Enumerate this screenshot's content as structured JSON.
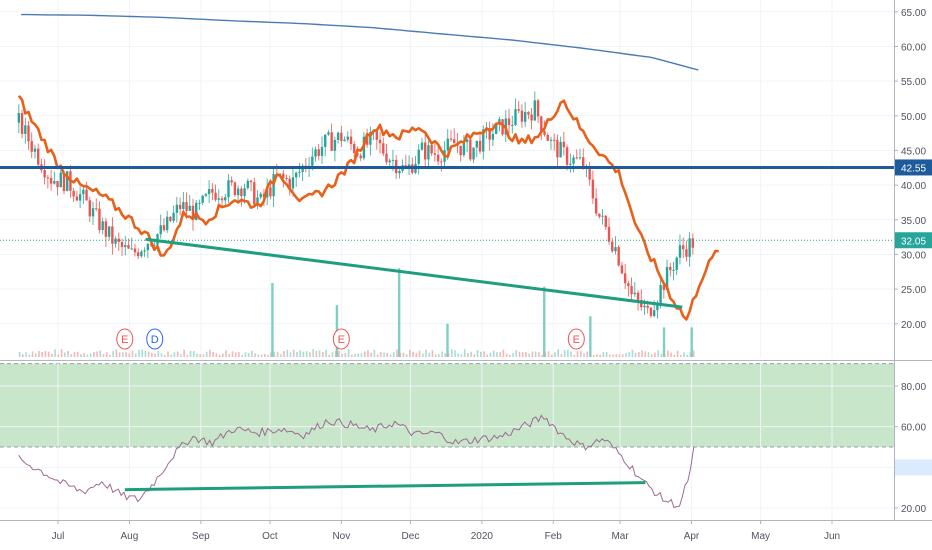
{
  "chart_data": [
    {
      "type": "line",
      "panel": "price",
      "ylim": [
        15,
        67
      ],
      "yticks": [
        "65.00",
        "60.00",
        "55.00",
        "50.00",
        "45.00",
        "40.00",
        "35.00",
        "30.00",
        "25.00",
        "20.00"
      ],
      "ytick_values": [
        65,
        60,
        55,
        50,
        45,
        40,
        35,
        30,
        25,
        20
      ],
      "xticks": [
        "Jul",
        "Aug",
        "Sep",
        "Oct",
        "Nov",
        "Dec",
        "2020",
        "Feb",
        "Mar",
        "Apr",
        "May",
        "Jun"
      ],
      "price_tags": [
        {
          "label": "42.55",
          "value": 42.55,
          "color": "#1e5b9c"
        },
        {
          "label": "32.05",
          "value": 32.05,
          "color": "#26a69a"
        }
      ],
      "horizontal_line": {
        "value": 42.55,
        "color": "#1e5b9c"
      },
      "dotted_line": {
        "value": 32.05,
        "color": "#26a69a"
      },
      "colors": {
        "up": "#26a69a",
        "down": "#ef5350",
        "ma_fast": "#e8611a",
        "ma_slow": "#4a7cb4",
        "trend": "#1e9e7f"
      },
      "ma_slow": {
        "x": [
          "Jun 15",
          "Jul 15",
          "Aug 15",
          "Sep 15",
          "Oct 15",
          "Nov 15",
          "Dec 15",
          "Jan 15",
          "Feb 15",
          "Mar 15",
          "Apr 4"
        ],
        "values": [
          64.6,
          64.5,
          64.2,
          63.7,
          63.3,
          62.7,
          61.8,
          60.9,
          59.7,
          58.4,
          56.6
        ]
      },
      "ma_fast": {
        "x": [
          "Jun 14",
          "Jun 22",
          "Jul 1",
          "Jul 10",
          "Jul 20",
          "Jul 31",
          "Aug 8",
          "Aug 16",
          "Aug 25",
          "Sep 3",
          "Sep 15",
          "Sep 26",
          "Oct 5",
          "Oct 15",
          "Oct 26",
          "Nov 5",
          "Nov 15",
          "Nov 26",
          "Dec 5",
          "Dec 16",
          "Dec 27",
          "Jan 7",
          "Jan 18",
          "Jan 27",
          "Feb 5",
          "Feb 14",
          "Feb 22",
          "Mar 1",
          "Mar 9",
          "Mar 16",
          "Mar 24",
          "Mar 30",
          "Apr 5",
          "Apr 13"
        ],
        "values": [
          52.5,
          48,
          43,
          40,
          38.5,
          35.5,
          33,
          29.5,
          36,
          35,
          38,
          37,
          42,
          37.5,
          39.5,
          43,
          48.5,
          47,
          48.5,
          44.5,
          47,
          49,
          46,
          47.5,
          52.5,
          47.5,
          44.5,
          41.5,
          33,
          28.5,
          23.5,
          20.5,
          26.5,
          31
        ]
      },
      "candles": {
        "x": [
          "Jun 14",
          "Jun 21",
          "Jun 28",
          "Jul 5",
          "Jul 12",
          "Jul 19",
          "Jul 26",
          "Aug 2",
          "Aug 9",
          "Aug 16",
          "Aug 23",
          "Aug 30",
          "Sep 6",
          "Sep 13",
          "Sep 20",
          "Sep 27",
          "Oct 4",
          "Oct 11",
          "Oct 18",
          "Oct 25",
          "Nov 1",
          "Nov 8",
          "Nov 15",
          "Nov 22",
          "Nov 29",
          "Dec 6",
          "Dec 13",
          "Dec 20",
          "Dec 27",
          "Jan 3",
          "Jan 10",
          "Jan 17",
          "Jan 24",
          "Jan 31",
          "Feb 7",
          "Feb 14",
          "Feb 21",
          "Feb 28",
          "Mar 6",
          "Mar 13",
          "Mar 20",
          "Mar 27",
          "Apr 3"
        ],
        "values": [
          49,
          45,
          41,
          40.5,
          38,
          34.5,
          31.5,
          30,
          32,
          33.5,
          37,
          36,
          39,
          39.5,
          40,
          37.5,
          41,
          40.5,
          44,
          46,
          47,
          45,
          46.5,
          44,
          42,
          45,
          44.5,
          46,
          45,
          47,
          48.5,
          50,
          51,
          46,
          44,
          43,
          35.5,
          31,
          24,
          21.5,
          26,
          30.5,
          32.05
        ]
      },
      "volume": {
        "x": [
          "Oct 2",
          "Oct 30",
          "Nov 26",
          "Dec 17",
          "Jan 28",
          "Feb 17",
          "Mar 20",
          "Apr 1"
        ],
        "values": [
          10,
          7,
          12,
          4.5,
          9.5,
          5.5,
          4,
          4
        ]
      },
      "trend_line": {
        "x": [
          "Aug 8",
          "Mar 28"
        ],
        "values": [
          32.2,
          22.4
        ]
      },
      "event_markers": [
        {
          "label": "E",
          "x": "Jul 30",
          "color": "#ef5350"
        },
        {
          "label": "D",
          "x": "Aug 12",
          "color": "#2962ff"
        },
        {
          "label": "E",
          "x": "Nov 1",
          "color": "#ef5350"
        },
        {
          "label": "E",
          "x": "Feb 11",
          "color": "#ef5350"
        }
      ]
    },
    {
      "type": "line",
      "panel": "oscillator",
      "ylim": [
        15,
        96
      ],
      "yticks": [
        "80.00",
        "60.00",
        "40.00",
        "20.00"
      ],
      "ytick_values": [
        80,
        60,
        40,
        20
      ],
      "band": [
        50,
        91
      ],
      "value_tag": {
        "label": "40.00",
        "value": 40
      },
      "colors": {
        "line": "#9c6b93",
        "band": "#c8e6c9",
        "trend": "#1e9e7f"
      },
      "series": {
        "x": [
          "Jun 14",
          "Jun 24",
          "Jul 3",
          "Jul 12",
          "Jul 20",
          "Jul 29",
          "Aug 5",
          "Aug 12",
          "Aug 20",
          "Aug 28",
          "Sep 6",
          "Sep 15",
          "Sep 26",
          "Oct 6",
          "Oct 16",
          "Oct 26",
          "Nov 5",
          "Nov 14",
          "Nov 24",
          "Dec 3",
          "Dec 12",
          "Dec 21",
          "Dec 31",
          "Jan 9",
          "Jan 19",
          "Jan 28",
          "Feb 5",
          "Feb 14",
          "Feb 23",
          "Mar 3",
          "Mar 11",
          "Mar 20",
          "Mar 27",
          "Apr 1"
        ],
        "values": [
          44,
          38,
          32,
          28,
          33,
          26,
          24,
          33,
          46,
          55,
          52,
          59,
          57,
          59,
          56,
          63,
          61,
          58,
          62,
          56,
          57,
          52,
          54,
          55,
          60,
          65,
          56,
          50,
          54,
          44,
          33,
          24,
          21,
          40
        ]
      },
      "trend_line": {
        "x": [
          "Jul 30",
          "Mar 12"
        ],
        "values": [
          29,
          32.5
        ]
      },
      "xticks": [
        "Jul",
        "Aug",
        "Sep",
        "Oct",
        "Nov",
        "Dec",
        "2020",
        "Feb",
        "Mar",
        "Apr",
        "May",
        "Jun"
      ]
    }
  ]
}
